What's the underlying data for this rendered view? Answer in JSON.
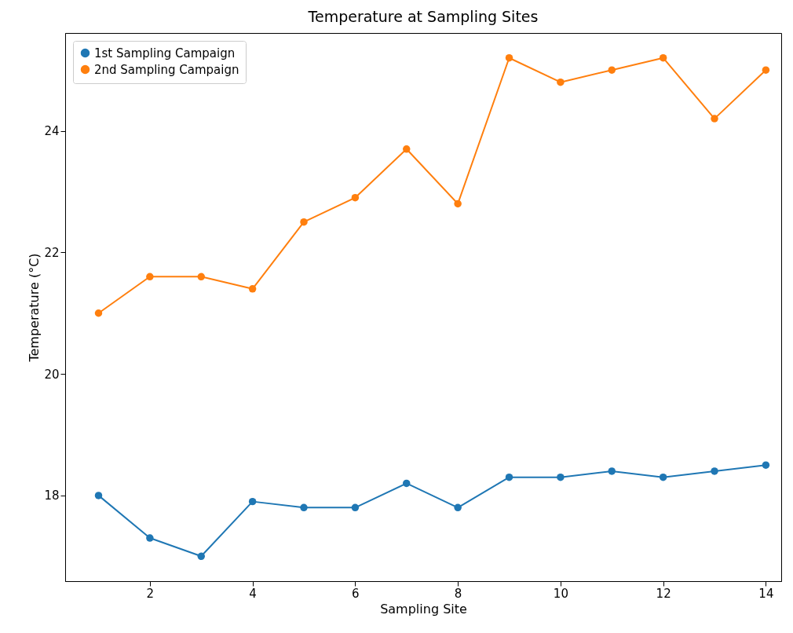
{
  "chart_data": {
    "type": "line",
    "title": "Temperature at Sampling Sites",
    "xlabel": "Sampling Site",
    "ylabel": "Temperature (°C)",
    "x": [
      1,
      2,
      3,
      4,
      5,
      6,
      7,
      8,
      9,
      10,
      11,
      12,
      13,
      14
    ],
    "series": [
      {
        "name": "1st Sampling Campaign",
        "color": "#1f77b4",
        "values": [
          18.0,
          17.3,
          17.0,
          17.9,
          17.8,
          17.8,
          18.2,
          17.8,
          18.3,
          18.3,
          18.4,
          18.3,
          18.4,
          18.5
        ]
      },
      {
        "name": "2nd Sampling Campaign",
        "color": "#ff7f0e",
        "values": [
          21.0,
          21.6,
          21.6,
          21.4,
          22.5,
          22.9,
          23.7,
          22.8,
          25.2,
          24.8,
          25.0,
          25.2,
          24.2,
          25.0
        ]
      }
    ],
    "xlim": [
      0.35,
      14.3
    ],
    "xticks": [
      2,
      4,
      6,
      8,
      10,
      12,
      14
    ],
    "ylim": [
      16.59,
      25.61
    ],
    "yticks": [
      18,
      20,
      22,
      24
    ],
    "grid": false,
    "legend": "top left",
    "marker": "circle",
    "line_style": "solid"
  }
}
